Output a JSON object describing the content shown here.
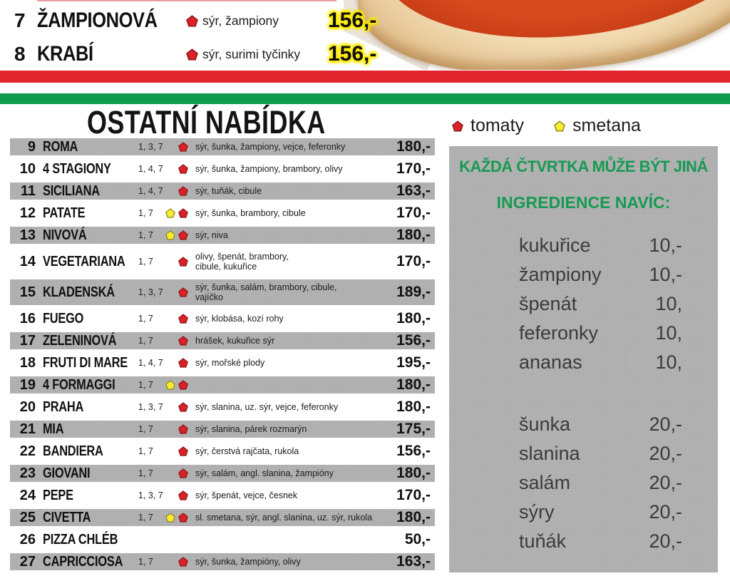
{
  "colors": {
    "stripe_red": "#e32530",
    "stripe_green": "#0f9b4c",
    "panel_gray": "#b2b2b2",
    "heading_green": "#169a52",
    "icon_tomato": "#da2128",
    "icon_tomato_edge": "#8c1418",
    "icon_cream": "#f7ec31",
    "icon_cream_edge": "#8f851f",
    "price_glow_yellow": "#ffec00"
  },
  "top_items": [
    {
      "number": "7",
      "name": "ŽAMPIONOVÁ",
      "icons": [
        "tomato"
      ],
      "desc": "sýr, žampiony",
      "price": "156,-"
    },
    {
      "number": "8",
      "name": "KRABÍ",
      "icons": [
        "tomato"
      ],
      "desc": "sýr, surimi tyčinky",
      "price": "156,-"
    }
  ],
  "section": {
    "title": "OSTATNÍ NABÍDKA"
  },
  "legend": [
    {
      "icon": "tomato",
      "label": "tomaty"
    },
    {
      "icon": "cream",
      "label": "smetana"
    }
  ],
  "menu_items": [
    {
      "number": "9",
      "name": "ROMA",
      "allergens": "1, 3, 7",
      "icons": [
        "tomato"
      ],
      "desc": [
        "sýr, šunka, žampiony, vejce, feferonky"
      ],
      "price": "180,-",
      "shaded": true
    },
    {
      "number": "10",
      "name": "4 STAGIONY",
      "allergens": "1, 4, 7",
      "icons": [
        "tomato"
      ],
      "desc": [
        "sýr, šunka, žampiony, brambory, olivy"
      ],
      "price": "170,-",
      "shaded": false
    },
    {
      "number": "11",
      "name": "SICILIANA",
      "allergens": "1, 4, 7",
      "icons": [
        "tomato"
      ],
      "desc": [
        "sýr, tuňák, cibule"
      ],
      "price": "163,-",
      "shaded": true
    },
    {
      "number": "12",
      "name": "PATATE",
      "allergens": "1, 7",
      "icons": [
        "cream",
        "tomato"
      ],
      "desc": [
        "sýr, šunka, brambory, cibule"
      ],
      "price": "170,-",
      "shaded": false
    },
    {
      "number": "13",
      "name": "NIVOVÁ",
      "allergens": "1, 7",
      "icons": [
        "cream",
        "tomato"
      ],
      "desc": [
        "sýr, niva"
      ],
      "price": "180,-",
      "shaded": true
    },
    {
      "number": "14",
      "name": "VEGETARIANA",
      "allergens": "1, 7",
      "icons": [
        "tomato"
      ],
      "desc": [
        "olivy, špenát, brambory,",
        "cibule, kukuřice"
      ],
      "price": "170,-",
      "shaded": false
    },
    {
      "number": "15",
      "name": "KLADENSKÁ",
      "allergens": "1, 3, 7",
      "icons": [
        "tomato"
      ],
      "desc": [
        "sýr, šunka, salám, brambory, cibule,",
        "vajíčko"
      ],
      "price": "189,-",
      "shaded": true
    },
    {
      "number": "16",
      "name": "FUEGO",
      "allergens": "1, 7",
      "icons": [
        "tomato"
      ],
      "desc": [
        "sýr, klobása, kozí rohy"
      ],
      "price": "180,-",
      "shaded": false
    },
    {
      "number": "17",
      "name": "ZELENINOVÁ",
      "allergens": "1, 7",
      "icons": [
        "tomato"
      ],
      "desc": [
        "hrášek, kukuřice sýr"
      ],
      "price": "156,-",
      "shaded": true
    },
    {
      "number": "18",
      "name": "FRUTI DI MARE",
      "allergens": "1, 4, 7",
      "icons": [
        "tomato"
      ],
      "desc": [
        "sýr, mořské plody"
      ],
      "price": "195,-",
      "shaded": false
    },
    {
      "number": "19",
      "name": "4 FORMAGGI",
      "allergens": "1, 7",
      "icons": [
        "cream",
        "tomato"
      ],
      "desc": [],
      "price": "180,-",
      "shaded": true
    },
    {
      "number": "20",
      "name": "PRAHA",
      "allergens": "1, 3, 7",
      "icons": [
        "tomato"
      ],
      "desc": [
        "sýr, slanina, uz. sýr, vejce, feferonky"
      ],
      "price": "180,-",
      "shaded": false
    },
    {
      "number": "21",
      "name": "MIA",
      "allergens": "1, 7",
      "icons": [
        "tomato"
      ],
      "desc": [
        "sýr, slanina, párek rozmarýn"
      ],
      "price": "175,-",
      "shaded": true
    },
    {
      "number": "22",
      "name": "BANDIERA",
      "allergens": "1, 7",
      "icons": [
        "tomato"
      ],
      "desc": [
        "sýr, čerstvá rajčata, rukola"
      ],
      "price": "156,-",
      "shaded": false
    },
    {
      "number": "23",
      "name": "GIOVANI",
      "allergens": "1, 7",
      "icons": [
        "tomato"
      ],
      "desc": [
        "sýr, salám, angl. slanina, žampióny"
      ],
      "price": "180,-",
      "shaded": true
    },
    {
      "number": "24",
      "name": "PEPE",
      "allergens": "1, 3, 7",
      "icons": [
        "tomato"
      ],
      "desc": [
        "sýr, špenát, vejce, česnek"
      ],
      "price": "170,-",
      "shaded": false
    },
    {
      "number": "25",
      "name": "CIVETTA",
      "allergens": "1, 7",
      "icons": [
        "cream",
        "tomato"
      ],
      "desc": [
        "sl. smetana, sýr, angl. slanina, uz. sýr, rukola"
      ],
      "price": "180,-",
      "shaded": true
    },
    {
      "number": "26",
      "name": "PIZZA CHLÉB",
      "allergens": "",
      "icons": [],
      "desc": [],
      "price": "50,-",
      "shaded": false
    },
    {
      "number": "27",
      "name": "CAPRICCIOSA",
      "allergens": "1, 7",
      "icons": [
        "tomato"
      ],
      "desc": [
        "sýr, šunka, žampióny, olivy"
      ],
      "price": "163,-",
      "shaded": true
    }
  ],
  "sidebar": {
    "heading1": "KAŽDÁ ČTVRTKA MŮŽE BÝT JINÁ",
    "heading2": "INGREDIENCE NAVÍC:",
    "groups": [
      [
        {
          "name": "kukuřice",
          "price": "10,-"
        },
        {
          "name": "žampiony",
          "price": "10,-"
        },
        {
          "name": "špenát",
          "price": "10,"
        },
        {
          "name": "feferonky",
          "price": "10,"
        },
        {
          "name": "ananas",
          "price": "10,"
        }
      ],
      [
        {
          "name": "šunka",
          "price": "20,-"
        },
        {
          "name": "slanina",
          "price": "20,-"
        },
        {
          "name": "salám",
          "price": "20,-"
        },
        {
          "name": "sýry",
          "price": "20,-"
        },
        {
          "name": "tuňák",
          "price": "20,-"
        }
      ]
    ]
  }
}
